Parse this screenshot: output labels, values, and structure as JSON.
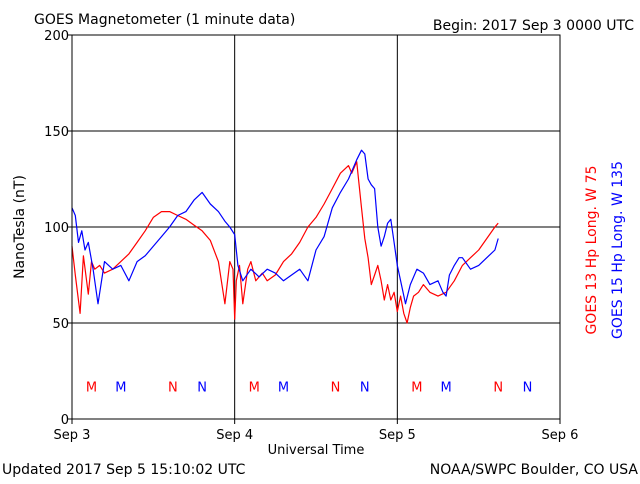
{
  "header": {
    "title": "GOES Magnetometer (1 minute data)",
    "begin": "Begin:  2017 Sep 3 0000 UTC"
  },
  "footer": {
    "updated": "Updated 2017 Sep  5 15:10:02 UTC",
    "credit": "NOAA/SWPC Boulder, CO USA"
  },
  "colors": {
    "goes13": "#ff0000",
    "goes15": "#0000ff",
    "axis": "#000000"
  },
  "chart_data": {
    "type": "line",
    "xlabel": "Universal Time",
    "ylabel": "NanoTesla (nT)",
    "xlim": [
      0,
      3
    ],
    "ylim": [
      0,
      200
    ],
    "grid": true,
    "x_ticks": [
      {
        "value": 0,
        "label": "Sep 3"
      },
      {
        "value": 1,
        "label": "Sep 4"
      },
      {
        "value": 2,
        "label": "Sep 5"
      },
      {
        "value": 3,
        "label": "Sep 6"
      }
    ],
    "y_ticks": [
      0,
      50,
      100,
      150,
      200
    ],
    "legend": [
      "GOES 13 Hp  Long. W 75",
      "GOES 15 Hp  Long. W 135"
    ],
    "series": [
      {
        "name": "GOES 13 Hp  Long. W 75",
        "color": "#ff0000",
        "x": [
          0,
          0.02,
          0.05,
          0.07,
          0.09,
          0.1,
          0.12,
          0.14,
          0.17,
          0.2,
          0.25,
          0.3,
          0.35,
          0.4,
          0.45,
          0.5,
          0.55,
          0.6,
          0.65,
          0.7,
          0.75,
          0.8,
          0.85,
          0.9,
          0.94,
          0.97,
          0.99,
          1.0,
          1.01,
          1.03,
          1.05,
          1.08,
          1.1,
          1.13,
          1.17,
          1.2,
          1.25,
          1.3,
          1.35,
          1.4,
          1.45,
          1.5,
          1.55,
          1.6,
          1.65,
          1.7,
          1.72,
          1.75,
          1.78,
          1.8,
          1.82,
          1.84,
          1.86,
          1.88,
          1.9,
          1.92,
          1.94,
          1.96,
          1.98,
          2.0,
          2.02,
          2.04,
          2.06,
          2.08,
          2.1,
          2.13,
          2.16,
          2.2,
          2.25,
          2.3,
          2.35,
          2.4,
          2.45,
          2.5,
          2.55,
          2.6,
          2.62
        ],
        "values": [
          90,
          75,
          55,
          85,
          72,
          65,
          82,
          78,
          80,
          76,
          78,
          82,
          86,
          92,
          98,
          105,
          108,
          108,
          106,
          104,
          101,
          98,
          93,
          82,
          60,
          82,
          78,
          52,
          72,
          80,
          60,
          78,
          82,
          72,
          76,
          72,
          75,
          82,
          86,
          92,
          100,
          105,
          112,
          120,
          128,
          132,
          128,
          134,
          110,
          94,
          84,
          70,
          75,
          80,
          72,
          62,
          70,
          62,
          66,
          56,
          64,
          55,
          50,
          58,
          64,
          66,
          70,
          66,
          64,
          66,
          72,
          80,
          84,
          88,
          94,
          100,
          102
        ]
      },
      {
        "name": "GOES 15 Hp  Long. W 135",
        "color": "#0000ff",
        "x": [
          0,
          0.02,
          0.04,
          0.06,
          0.08,
          0.1,
          0.13,
          0.16,
          0.2,
          0.25,
          0.3,
          0.35,
          0.4,
          0.45,
          0.5,
          0.55,
          0.6,
          0.65,
          0.7,
          0.75,
          0.8,
          0.85,
          0.9,
          0.94,
          0.97,
          1.0,
          1.02,
          1.05,
          1.1,
          1.15,
          1.2,
          1.25,
          1.3,
          1.35,
          1.4,
          1.45,
          1.5,
          1.55,
          1.6,
          1.65,
          1.7,
          1.75,
          1.78,
          1.8,
          1.82,
          1.84,
          1.86,
          1.88,
          1.9,
          1.92,
          1.94,
          1.96,
          1.98,
          2.0,
          2.02,
          2.05,
          2.08,
          2.12,
          2.16,
          2.2,
          2.25,
          2.28,
          2.3,
          2.32,
          2.35,
          2.38,
          2.4,
          2.45,
          2.5,
          2.55,
          2.6,
          2.62
        ],
        "values": [
          110,
          106,
          92,
          98,
          88,
          92,
          78,
          60,
          82,
          78,
          80,
          72,
          82,
          85,
          90,
          95,
          100,
          106,
          108,
          114,
          118,
          112,
          108,
          103,
          100,
          96,
          80,
          72,
          78,
          74,
          78,
          76,
          72,
          75,
          78,
          72,
          88,
          95,
          110,
          118,
          125,
          135,
          140,
          138,
          125,
          122,
          120,
          100,
          90,
          95,
          102,
          104,
          92,
          80,
          72,
          60,
          70,
          78,
          76,
          70,
          72,
          66,
          64,
          75,
          80,
          84,
          84,
          78,
          80,
          84,
          88,
          94
        ]
      }
    ],
    "markers": [
      {
        "x": 0.12,
        "label": "M",
        "series": 0
      },
      {
        "x": 0.3,
        "label": "M",
        "series": 1
      },
      {
        "x": 0.62,
        "label": "N",
        "series": 0
      },
      {
        "x": 0.8,
        "label": "N",
        "series": 1
      },
      {
        "x": 1.12,
        "label": "M",
        "series": 0
      },
      {
        "x": 1.3,
        "label": "M",
        "series": 1
      },
      {
        "x": 1.62,
        "label": "N",
        "series": 0
      },
      {
        "x": 1.8,
        "label": "N",
        "series": 1
      },
      {
        "x": 2.12,
        "label": "M",
        "series": 0
      },
      {
        "x": 2.3,
        "label": "M",
        "series": 1
      },
      {
        "x": 2.62,
        "label": "N",
        "series": 0
      },
      {
        "x": 2.8,
        "label": "N",
        "series": 1
      }
    ],
    "marker_level": 17
  }
}
